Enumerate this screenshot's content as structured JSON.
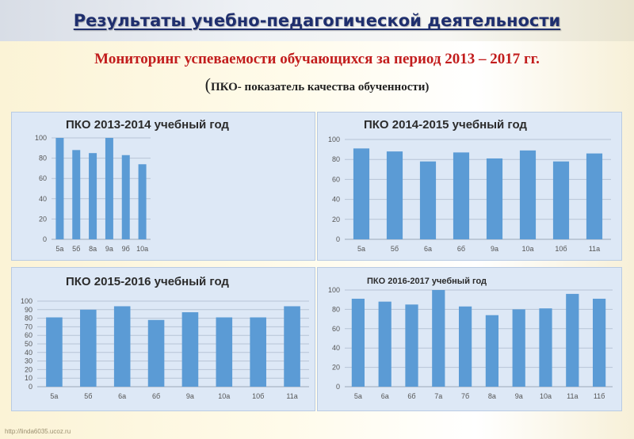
{
  "page": {
    "headline": "Результаты учебно-педагогической деятельности",
    "subtitle": "Мониторинг успеваемости обучающихся за период 2013 – 2017 гг.",
    "note_open": "(",
    "note": "ПКО- показатель качества обученности)",
    "footer_url": "http://linda6035.ucoz.ru"
  },
  "chart_data": [
    {
      "type": "bar",
      "title": "ПКО  2013-2014 учебный год",
      "categories": [
        "5а",
        "5б",
        "8а",
        "9а",
        "9б",
        "10а"
      ],
      "values": [
        100,
        88,
        85,
        100,
        83,
        74
      ],
      "ylim": [
        0,
        100
      ],
      "yticks": [
        0,
        20,
        40,
        60,
        80,
        100
      ],
      "grid": true,
      "bar_color": "#5b9bd5"
    },
    {
      "type": "bar",
      "title": "ПКО  2014-2015 учебный год",
      "categories": [
        "5а",
        "5б",
        "6а",
        "6б",
        "9а",
        "10а",
        "10б",
        "11а"
      ],
      "values": [
        91,
        88,
        78,
        87,
        81,
        89,
        78,
        86
      ],
      "ylim": [
        0,
        100
      ],
      "yticks": [
        0,
        20,
        40,
        60,
        80,
        100
      ],
      "grid": true,
      "bar_color": "#5b9bd5"
    },
    {
      "type": "bar",
      "title": "ПКО  2015-2016 учебный год",
      "categories": [
        "5а",
        "5б",
        "6а",
        "6б",
        "9а",
        "10а",
        "10б",
        "11а"
      ],
      "values": [
        81,
        90,
        94,
        78,
        87,
        81,
        81,
        94
      ],
      "ylim": [
        0,
        100
      ],
      "yticks": [
        0,
        10,
        20,
        30,
        40,
        50,
        60,
        70,
        80,
        90,
        100
      ],
      "grid": true,
      "bar_color": "#5b9bd5"
    },
    {
      "type": "bar",
      "title": "ПКО  2016-2017 учебный год",
      "categories": [
        "5а",
        "6а",
        "6б",
        "7а",
        "7б",
        "8а",
        "9а",
        "10а",
        "11а",
        "11б"
      ],
      "values": [
        91,
        88,
        85,
        100,
        83,
        74,
        80,
        81,
        96,
        91
      ],
      "ylim": [
        0,
        100
      ],
      "yticks": [
        0,
        20,
        40,
        60,
        80,
        100
      ],
      "grid": true,
      "bar_color": "#5b9bd5"
    }
  ]
}
